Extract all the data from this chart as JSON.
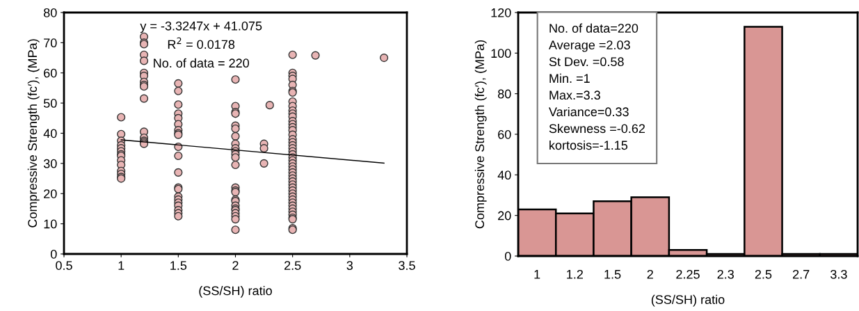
{
  "chart_data": [
    {
      "type": "scatter",
      "xlabel": "(SS/SH) ratio",
      "ylabel": "Compressive Strength (fc′), (MPa)",
      "xlim": [
        0.5,
        3.5
      ],
      "xticks": [
        0.5,
        1,
        1.5,
        2,
        2.5,
        3,
        3.5
      ],
      "ylim": [
        0,
        80
      ],
      "yticks": [
        0,
        10,
        20,
        30,
        40,
        50,
        60,
        70,
        80
      ],
      "grid": false,
      "legend": false,
      "annotations": [
        "y = -3.3247x + 41.075",
        "R$^{2}$ = 0.0178",
        "No. of data = 220"
      ],
      "series": [
        {
          "type": "scatter",
          "color": "#e8b4b4",
          "marker": "circle",
          "x": [
            1,
            1,
            1,
            1,
            1,
            1,
            1,
            1,
            1,
            1,
            1,
            1,
            1,
            1,
            1.2,
            1.2,
            1.2,
            1.2,
            1.2,
            1.2,
            1.2,
            1.2,
            1.2,
            1.2,
            1.2,
            1.2,
            1.2,
            1.2,
            1.2,
            1.2,
            1.5,
            1.5,
            1.5,
            1.5,
            1.5,
            1.5,
            1.5,
            1.5,
            1.5,
            1.5,
            1.5,
            1.5,
            1.5,
            1.5,
            1.5,
            1.5,
            1.5,
            1.5,
            1.5,
            1.5,
            1.5,
            2,
            2,
            2,
            2,
            2,
            2,
            2,
            2,
            2,
            2,
            2,
            2,
            2,
            2,
            2,
            2,
            2,
            2,
            2,
            2,
            2,
            2,
            2,
            2,
            2,
            2.25,
            2.25,
            2.25,
            2.3,
            2.5,
            2.5,
            2.5,
            2.5,
            2.5,
            2.5,
            2.5,
            2.5,
            2.5,
            2.5,
            2.5,
            2.5,
            2.5,
            2.5,
            2.5,
            2.5,
            2.5,
            2.5,
            2.5,
            2.5,
            2.5,
            2.5,
            2.5,
            2.5,
            2.5,
            2.5,
            2.5,
            2.5,
            2.5,
            2.5,
            2.5,
            2.5,
            2.5,
            2.5,
            2.5,
            2.5,
            2.5,
            2.5,
            2.5,
            2.5,
            2.5,
            2.5,
            2.5,
            2.5,
            2.5,
            2.5,
            2.5,
            2.7,
            3.3
          ],
          "values": [
            45.3,
            39.7,
            37.5,
            36,
            35,
            34,
            33,
            32.5,
            31,
            29.5,
            27.5,
            26.5,
            25.5,
            25,
            72,
            70,
            69.5,
            66,
            64,
            60,
            59,
            57,
            56,
            55.5,
            51.5,
            40.5,
            38.5,
            37.5,
            37,
            36.5,
            56.5,
            54,
            49.5,
            46.5,
            45,
            43,
            41,
            40,
            39.5,
            35.5,
            32.5,
            27,
            22,
            21.5,
            19,
            18,
            17,
            16,
            14.5,
            13.5,
            12.5,
            57.8,
            49,
            47,
            46.5,
            42.5,
            41.5,
            39,
            36.5,
            35,
            34,
            33,
            32,
            29.5,
            22,
            21,
            20.5,
            18,
            17.5,
            16,
            15,
            14.5,
            13.5,
            12.5,
            11.5,
            8,
            36.5,
            35,
            30,
            49.3,
            66,
            60,
            59,
            58,
            56,
            54,
            53.5,
            50.5,
            49,
            47.5,
            46.5,
            45.5,
            44,
            43,
            42,
            41,
            39.5,
            38,
            37,
            36,
            35,
            34,
            33,
            32,
            31,
            30,
            29,
            28,
            27,
            26,
            25,
            24,
            23,
            22,
            21,
            20,
            19,
            18,
            17,
            16,
            15,
            14,
            13,
            12,
            11.5,
            8.5,
            8,
            65.8,
            65
          ]
        },
        {
          "type": "line",
          "color": "#000000",
          "marker": "none",
          "x": [
            1,
            3.3
          ],
          "values": [
            37.8,
            30.1
          ]
        }
      ]
    },
    {
      "type": "bar",
      "xlabel": "(SS/SH) ratio",
      "ylabel": "Compressive Strength (fc′), (MPa)",
      "categories": [
        "1",
        "1.2",
        "1.5",
        "2",
        "2.25",
        "2.3",
        "2.5",
        "2.7",
        "3.3"
      ],
      "values": [
        23,
        21,
        27,
        29,
        3,
        1,
        113,
        1,
        1
      ],
      "color": "#d99694",
      "ylim": [
        0,
        120
      ],
      "yticks": [
        0,
        20,
        40,
        60,
        80,
        100,
        120
      ],
      "grid": false,
      "legend": false,
      "annotations": [
        "No. of data=220",
        "Average =2.03",
        "St Dev. =0.58",
        "Min. =1",
        "Max.=3.3",
        "Variance=0.33",
        "Skewness =-0.62",
        "kortosis=-1.15"
      ]
    }
  ]
}
